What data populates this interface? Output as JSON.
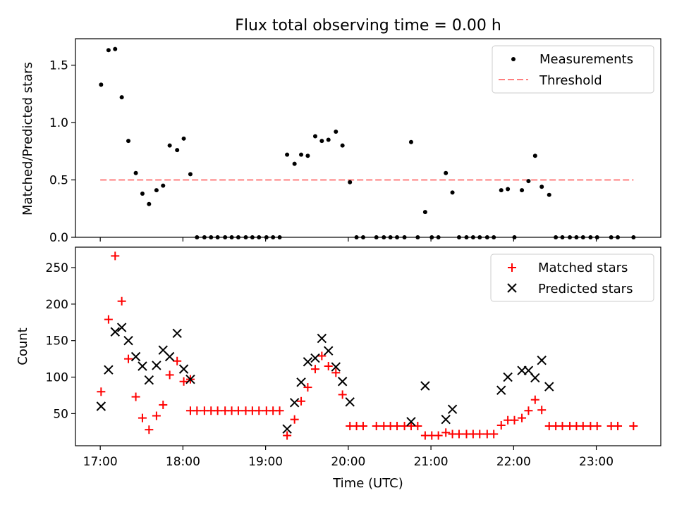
{
  "chart_data": [
    {
      "type": "scatter",
      "title": "Flux total observing time = 0.00 h",
      "xlabel": "",
      "ylabel": "Matched/Predicted stars",
      "xlim": [
        16.7,
        23.78
      ],
      "ylim": [
        0,
        1.73
      ],
      "yticks": [
        0.0,
        0.5,
        1.0,
        1.5
      ],
      "ytick_labels": [
        "0.0",
        "0.5",
        "1.0",
        "1.5"
      ],
      "legend_position": "top-right",
      "threshold": 0.5,
      "threshold_range": [
        17.0,
        23.45
      ],
      "series": [
        {
          "name": "Measurements",
          "marker": "dot",
          "color": "#000000",
          "points": [
            [
              17.01,
              1.33
            ],
            [
              17.1,
              1.63
            ],
            [
              17.18,
              1.64
            ],
            [
              17.26,
              1.22
            ],
            [
              17.34,
              0.84
            ],
            [
              17.43,
              0.56
            ],
            [
              17.51,
              0.38
            ],
            [
              17.59,
              0.29
            ],
            [
              17.68,
              0.41
            ],
            [
              17.76,
              0.45
            ],
            [
              17.84,
              0.8
            ],
            [
              17.93,
              0.76
            ],
            [
              18.01,
              0.86
            ],
            [
              18.09,
              0.55
            ],
            [
              18.17,
              0.0
            ],
            [
              18.26,
              0.0
            ],
            [
              18.34,
              0.0
            ],
            [
              18.42,
              0.0
            ],
            [
              18.51,
              0.0
            ],
            [
              18.59,
              0.0
            ],
            [
              18.67,
              0.0
            ],
            [
              18.76,
              0.0
            ],
            [
              18.84,
              0.0
            ],
            [
              18.92,
              0.0
            ],
            [
              19.01,
              0.0
            ],
            [
              19.09,
              0.0
            ],
            [
              19.17,
              0.0
            ],
            [
              19.26,
              0.72
            ],
            [
              19.35,
              0.64
            ],
            [
              19.43,
              0.72
            ],
            [
              19.51,
              0.71
            ],
            [
              19.6,
              0.88
            ],
            [
              19.68,
              0.84
            ],
            [
              19.76,
              0.85
            ],
            [
              19.85,
              0.92
            ],
            [
              19.93,
              0.8
            ],
            [
              20.02,
              0.48
            ],
            [
              20.1,
              0.0
            ],
            [
              20.18,
              0.0
            ],
            [
              20.34,
              0.0
            ],
            [
              20.43,
              0.0
            ],
            [
              20.51,
              0.0
            ],
            [
              20.59,
              0.0
            ],
            [
              20.68,
              0.0
            ],
            [
              20.76,
              0.83
            ],
            [
              20.84,
              0.0
            ],
            [
              20.93,
              0.22
            ],
            [
              21.01,
              0.0
            ],
            [
              21.09,
              0.0
            ],
            [
              21.18,
              0.56
            ],
            [
              21.26,
              0.39
            ],
            [
              21.34,
              0.0
            ],
            [
              21.43,
              0.0
            ],
            [
              21.51,
              0.0
            ],
            [
              21.59,
              0.0
            ],
            [
              21.68,
              0.0
            ],
            [
              21.76,
              0.0
            ],
            [
              21.85,
              0.41
            ],
            [
              21.93,
              0.42
            ],
            [
              22.01,
              0.0
            ],
            [
              22.1,
              0.41
            ],
            [
              22.18,
              0.49
            ],
            [
              22.26,
              0.71
            ],
            [
              22.34,
              0.44
            ],
            [
              22.43,
              0.37
            ],
            [
              22.51,
              0.0
            ],
            [
              22.59,
              0.0
            ],
            [
              22.68,
              0.0
            ],
            [
              22.76,
              0.0
            ],
            [
              22.84,
              0.0
            ],
            [
              22.93,
              0.0
            ],
            [
              23.01,
              0.0
            ],
            [
              23.18,
              0.0
            ],
            [
              23.26,
              0.0
            ],
            [
              23.45,
              0.0
            ]
          ]
        },
        {
          "name": "Threshold",
          "marker": "dashed-line",
          "color": "#ff7f7f"
        }
      ]
    },
    {
      "type": "scatter",
      "title": "",
      "xlabel": "Time (UTC)",
      "ylabel": "Count",
      "xlim": [
        16.7,
        23.78
      ],
      "ylim": [
        6,
        278
      ],
      "xticks": [
        17,
        18,
        19,
        20,
        21,
        22,
        23
      ],
      "xtick_labels": [
        "17:00",
        "18:00",
        "19:00",
        "20:00",
        "21:00",
        "22:00",
        "23:00"
      ],
      "yticks": [
        50,
        100,
        150,
        200,
        250
      ],
      "ytick_labels": [
        "50",
        "100",
        "150",
        "200",
        "250"
      ],
      "legend_position": "top-right",
      "series": [
        {
          "name": "Matched stars",
          "marker": "plus",
          "color": "#ff0000",
          "points": [
            [
              17.01,
              80
            ],
            [
              17.1,
              179
            ],
            [
              17.18,
              266
            ],
            [
              17.26,
              204
            ],
            [
              17.34,
              125
            ],
            [
              17.43,
              73
            ],
            [
              17.51,
              44
            ],
            [
              17.59,
              28
            ],
            [
              17.68,
              47
            ],
            [
              17.76,
              62
            ],
            [
              17.84,
              103
            ],
            [
              17.93,
              122
            ],
            [
              18.01,
              94
            ],
            [
              18.09,
              97
            ],
            [
              18.09,
              54
            ],
            [
              18.17,
              54
            ],
            [
              18.26,
              54
            ],
            [
              18.34,
              54
            ],
            [
              18.42,
              54
            ],
            [
              18.51,
              54
            ],
            [
              18.59,
              54
            ],
            [
              18.67,
              54
            ],
            [
              18.76,
              54
            ],
            [
              18.84,
              54
            ],
            [
              18.92,
              54
            ],
            [
              19.01,
              54
            ],
            [
              19.09,
              54
            ],
            [
              19.17,
              54
            ],
            [
              19.26,
              20
            ],
            [
              19.35,
              42
            ],
            [
              19.43,
              67
            ],
            [
              19.51,
              86
            ],
            [
              19.6,
              111
            ],
            [
              19.68,
              129
            ],
            [
              19.76,
              115
            ],
            [
              19.85,
              106
            ],
            [
              19.93,
              76
            ],
            [
              20.02,
              33
            ],
            [
              20.1,
              33
            ],
            [
              20.18,
              33
            ],
            [
              20.34,
              33
            ],
            [
              20.43,
              33
            ],
            [
              20.51,
              33
            ],
            [
              20.59,
              33
            ],
            [
              20.68,
              33
            ],
            [
              20.76,
              33
            ],
            [
              20.84,
              33
            ],
            [
              20.93,
              20
            ],
            [
              21.01,
              20
            ],
            [
              21.09,
              20
            ],
            [
              21.18,
              24
            ],
            [
              21.26,
              22
            ],
            [
              21.34,
              22
            ],
            [
              21.43,
              22
            ],
            [
              21.51,
              22
            ],
            [
              21.59,
              22
            ],
            [
              21.68,
              22
            ],
            [
              21.76,
              22
            ],
            [
              21.85,
              34
            ],
            [
              21.93,
              41
            ],
            [
              22.01,
              41
            ],
            [
              22.1,
              44
            ],
            [
              22.18,
              54
            ],
            [
              22.26,
              69
            ],
            [
              22.34,
              55
            ],
            [
              22.43,
              33
            ],
            [
              22.51,
              33
            ],
            [
              22.59,
              33
            ],
            [
              22.68,
              33
            ],
            [
              22.76,
              33
            ],
            [
              22.84,
              33
            ],
            [
              22.93,
              33
            ],
            [
              23.01,
              33
            ],
            [
              23.18,
              33
            ],
            [
              23.26,
              33
            ],
            [
              23.45,
              33
            ]
          ]
        },
        {
          "name": "Predicted stars",
          "marker": "x",
          "color": "#000000",
          "points": [
            [
              17.01,
              60
            ],
            [
              17.1,
              110
            ],
            [
              17.18,
              162
            ],
            [
              17.26,
              168
            ],
            [
              17.34,
              150
            ],
            [
              17.43,
              128
            ],
            [
              17.51,
              115
            ],
            [
              17.59,
              96
            ],
            [
              17.68,
              116
            ],
            [
              17.76,
              137
            ],
            [
              17.84,
              128
            ],
            [
              17.93,
              160
            ],
            [
              18.01,
              111
            ],
            [
              18.09,
              97
            ],
            [
              19.26,
              29
            ],
            [
              19.35,
              65
            ],
            [
              19.43,
              93
            ],
            [
              19.51,
              121
            ],
            [
              19.6,
              126
            ],
            [
              19.68,
              153
            ],
            [
              19.76,
              136
            ],
            [
              19.85,
              114
            ],
            [
              19.93,
              94
            ],
            [
              20.02,
              66
            ],
            [
              20.76,
              39
            ],
            [
              20.93,
              88
            ],
            [
              21.18,
              42
            ],
            [
              21.26,
              56
            ],
            [
              21.85,
              82
            ],
            [
              21.93,
              100
            ],
            [
              22.1,
              109
            ],
            [
              22.18,
              109
            ],
            [
              22.26,
              99
            ],
            [
              22.34,
              123
            ],
            [
              22.43,
              87
            ]
          ]
        }
      ]
    }
  ]
}
